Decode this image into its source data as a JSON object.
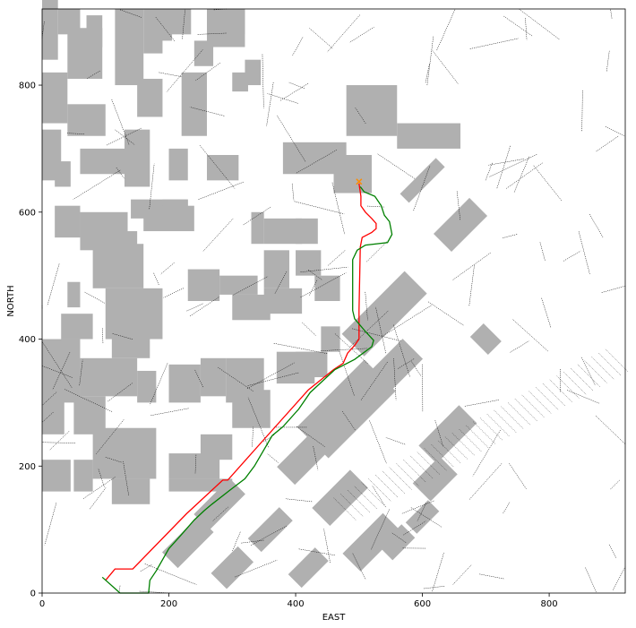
{
  "chart_data": {
    "type": "line",
    "xlabel": "EAST",
    "ylabel": "NORTH",
    "xlim": [
      0,
      920
    ],
    "ylim": [
      0,
      920
    ],
    "x_ticks": [
      0,
      200,
      400,
      600,
      800
    ],
    "y_ticks": [
      0,
      200,
      400,
      600,
      800
    ],
    "grid": false,
    "colors": {
      "obstacle": "#b0b0b0",
      "voronoi": "#000000",
      "path_red": "#ff0000",
      "path_green": "#008000",
      "marker": "#ff8c00"
    },
    "series": [
      {
        "color": "red",
        "points": [
          [
            100,
            20
          ],
          [
            115,
            38
          ],
          [
            143,
            38
          ],
          [
            228,
            125
          ],
          [
            285,
            178
          ],
          [
            293,
            178
          ],
          [
            335,
            225
          ],
          [
            420,
            320
          ],
          [
            460,
            352
          ],
          [
            475,
            362
          ],
          [
            482,
            378
          ],
          [
            493,
            390
          ],
          [
            500,
            400
          ],
          [
            500,
            445
          ],
          [
            502,
            545
          ],
          [
            505,
            560
          ],
          [
            520,
            568
          ],
          [
            527,
            574
          ],
          [
            527,
            582
          ],
          [
            520,
            590
          ],
          [
            510,
            600
          ],
          [
            503,
            610
          ],
          [
            503,
            625
          ],
          [
            500,
            645
          ]
        ]
      },
      {
        "color": "green",
        "points": [
          [
            95,
            25
          ],
          [
            123,
            0
          ],
          [
            168,
            0
          ],
          [
            170,
            20
          ],
          [
            180,
            35
          ],
          [
            200,
            70
          ],
          [
            218,
            90
          ],
          [
            240,
            115
          ],
          [
            256,
            130
          ],
          [
            268,
            140
          ],
          [
            300,
            165
          ],
          [
            320,
            180
          ],
          [
            335,
            200
          ],
          [
            363,
            248
          ],
          [
            380,
            262
          ],
          [
            405,
            290
          ],
          [
            423,
            316
          ],
          [
            462,
            352
          ],
          [
            493,
            368
          ],
          [
            520,
            388
          ],
          [
            523,
            398
          ],
          [
            510,
            412
          ],
          [
            493,
            432
          ],
          [
            490,
            445
          ],
          [
            490,
            525
          ],
          [
            497,
            540
          ],
          [
            510,
            548
          ],
          [
            545,
            552
          ],
          [
            552,
            565
          ],
          [
            548,
            585
          ],
          [
            540,
            595
          ],
          [
            535,
            610
          ],
          [
            525,
            625
          ],
          [
            508,
            632
          ],
          [
            502,
            640
          ]
        ]
      }
    ],
    "start_marker": [
      500,
      648
    ],
    "obstacles": [
      [
        0,
        840,
        25,
        920
      ],
      [
        25,
        880,
        35,
        40
      ],
      [
        40,
        810,
        55,
        80
      ],
      [
        70,
        860,
        25,
        50
      ],
      [
        115,
        800,
        45,
        120
      ],
      [
        160,
        850,
        30,
        70
      ],
      [
        185,
        870,
        20,
        50
      ],
      [
        200,
        880,
        35,
        40
      ],
      [
        240,
        830,
        30,
        40
      ],
      [
        260,
        860,
        60,
        60
      ],
      [
        280,
        880,
        40,
        40
      ],
      [
        0,
        740,
        40,
        80
      ],
      [
        40,
        720,
        60,
        50
      ],
      [
        150,
        750,
        40,
        60
      ],
      [
        220,
        720,
        40,
        100
      ],
      [
        300,
        790,
        25,
        30
      ],
      [
        320,
        800,
        25,
        40
      ],
      [
        0,
        650,
        30,
        80
      ],
      [
        20,
        640,
        25,
        40
      ],
      [
        60,
        660,
        70,
        40
      ],
      [
        130,
        640,
        40,
        90
      ],
      [
        200,
        650,
        30,
        50
      ],
      [
        260,
        650,
        50,
        40
      ],
      [
        140,
        590,
        90,
        30
      ],
      [
        160,
        570,
        80,
        40
      ],
      [
        20,
        560,
        40,
        50
      ],
      [
        60,
        540,
        75,
        60
      ],
      [
        130,
        540,
        20,
        30
      ],
      [
        190,
        600,
        40,
        20
      ],
      [
        80,
        480,
        80,
        70
      ],
      [
        40,
        450,
        20,
        40
      ],
      [
        30,
        400,
        50,
        40
      ],
      [
        100,
        400,
        90,
        80
      ],
      [
        110,
        370,
        60,
        40
      ],
      [
        230,
        460,
        50,
        50
      ],
      [
        280,
        470,
        60,
        30
      ],
      [
        300,
        430,
        60,
        40
      ],
      [
        350,
        480,
        40,
        60
      ],
      [
        350,
        550,
        60,
        40
      ],
      [
        400,
        550,
        35,
        40
      ],
      [
        330,
        550,
        20,
        50
      ],
      [
        400,
        500,
        40,
        40
      ],
      [
        430,
        460,
        40,
        40
      ],
      [
        380,
        660,
        100,
        50
      ],
      [
        460,
        630,
        60,
        60
      ],
      [
        480,
        720,
        80,
        80
      ],
      [
        560,
        700,
        100,
        40
      ],
      [
        0,
        300,
        60,
        100
      ],
      [
        60,
        310,
        90,
        60
      ],
      [
        150,
        300,
        30,
        50
      ],
      [
        200,
        300,
        50,
        60
      ],
      [
        250,
        310,
        40,
        60
      ],
      [
        290,
        300,
        60,
        70
      ],
      [
        0,
        250,
        35,
        60
      ],
      [
        50,
        250,
        50,
        60
      ],
      [
        80,
        180,
        100,
        80
      ],
      [
        110,
        140,
        60,
        40
      ],
      [
        50,
        160,
        30,
        50
      ],
      [
        0,
        160,
        45,
        50
      ],
      [
        200,
        180,
        80,
        40
      ],
      [
        200,
        160,
        100,
        20
      ],
      [
        250,
        210,
        50,
        40
      ],
      [
        300,
        260,
        60,
        60
      ],
      [
        370,
        330,
        60,
        50
      ],
      [
        400,
        340,
        50,
        40
      ],
      [
        440,
        380,
        30,
        40
      ],
      [
        350,
        440,
        60,
        40
      ]
    ],
    "diagonal_blocks": [
      [
        600,
        650,
        80,
        20
      ],
      [
        660,
        580,
        80,
        40
      ],
      [
        540,
        440,
        140,
        50
      ],
      [
        560,
        360,
        70,
        45
      ],
      [
        480,
        290,
        150,
        70
      ],
      [
        420,
        220,
        100,
        40
      ],
      [
        470,
        150,
        85,
        40
      ],
      [
        520,
        80,
        90,
        40
      ],
      [
        280,
        140,
        80,
        35
      ],
      [
        230,
        80,
        80,
        35
      ],
      [
        300,
        40,
        60,
        35
      ],
      [
        360,
        100,
        70,
        30
      ],
      [
        420,
        40,
        60,
        30
      ],
      [
        560,
        80,
        50,
        30
      ],
      [
        620,
        180,
        60,
        40
      ],
      [
        640,
        250,
        90,
        40
      ],
      [
        600,
        120,
        50,
        25
      ],
      [
        700,
        400,
        30,
        40
      ]
    ]
  }
}
